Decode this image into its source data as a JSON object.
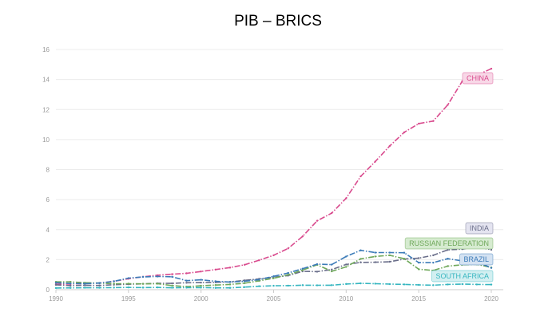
{
  "chart_data": {
    "type": "line",
    "title": "PIB – BRICS",
    "xlabel": "",
    "ylabel": "",
    "xlim": [
      1990,
      2020
    ],
    "ylim": [
      0,
      16
    ],
    "x_ticks": [
      "1990",
      "1995",
      "2000",
      "2005",
      "2010",
      "2015",
      "2020"
    ],
    "y_ticks": [
      "0",
      "2",
      "4",
      "6",
      "8",
      "10",
      "12",
      "14",
      "16"
    ],
    "grid": "horizontal",
    "legend": "end-of-line labels",
    "x": [
      1990,
      1991,
      1992,
      1993,
      1994,
      1995,
      1996,
      1997,
      1998,
      1999,
      2000,
      2001,
      2002,
      2003,
      2004,
      2005,
      2006,
      2007,
      2008,
      2009,
      2010,
      2011,
      2012,
      2013,
      2014,
      2015,
      2016,
      2017,
      2018,
      2019,
      2020
    ],
    "series": [
      {
        "name": "CHINA",
        "color": "#d94b8e",
        "tag_fill": "#f8d8e7",
        "values": [
          0.36,
          0.38,
          0.42,
          0.44,
          0.56,
          0.73,
          0.86,
          0.96,
          1.03,
          1.09,
          1.21,
          1.34,
          1.47,
          1.66,
          1.96,
          2.29,
          2.75,
          3.55,
          4.59,
          5.1,
          6.09,
          7.55,
          8.53,
          9.57,
          10.48,
          11.06,
          11.23,
          12.31,
          13.89,
          14.28,
          14.72
        ]
      },
      {
        "name": "INDIA",
        "color": "#6a6e8a",
        "tag_fill": "#e4e4f0",
        "values": [
          0.32,
          0.27,
          0.29,
          0.28,
          0.33,
          0.36,
          0.39,
          0.42,
          0.42,
          0.46,
          0.47,
          0.49,
          0.52,
          0.62,
          0.72,
          0.83,
          0.94,
          1.22,
          1.2,
          1.34,
          1.68,
          1.82,
          1.83,
          1.86,
          2.04,
          2.1,
          2.29,
          2.65,
          2.7,
          2.87,
          2.66
        ]
      },
      {
        "name": "RUSSIAN FEDERATION",
        "color": "#6fa85a",
        "tag_fill": "#d6ebd0",
        "values": [
          0.52,
          0.52,
          0.46,
          0.44,
          0.4,
          0.4,
          0.39,
          0.4,
          0.27,
          0.2,
          0.26,
          0.31,
          0.35,
          0.43,
          0.59,
          0.76,
          0.99,
          1.3,
          1.66,
          1.22,
          1.52,
          2.05,
          2.21,
          2.29,
          2.06,
          1.36,
          1.28,
          1.57,
          1.66,
          1.69,
          1.48
        ]
      },
      {
        "name": "BRAZIL",
        "color": "#3b7bb8",
        "tag_fill": "#d4e2f2",
        "values": [
          0.46,
          0.41,
          0.4,
          0.44,
          0.56,
          0.77,
          0.85,
          0.88,
          0.86,
          0.6,
          0.66,
          0.56,
          0.51,
          0.56,
          0.67,
          0.89,
          1.11,
          1.4,
          1.7,
          1.67,
          2.21,
          2.62,
          2.47,
          2.47,
          2.46,
          1.8,
          1.8,
          2.06,
          1.92,
          1.87,
          1.45
        ]
      },
      {
        "name": "SOUTH AFRICA",
        "color": "#36b6c0",
        "tag_fill": "#d3eff1",
        "values": [
          0.11,
          0.12,
          0.13,
          0.13,
          0.14,
          0.15,
          0.14,
          0.15,
          0.13,
          0.14,
          0.14,
          0.12,
          0.12,
          0.17,
          0.23,
          0.26,
          0.27,
          0.3,
          0.29,
          0.3,
          0.38,
          0.42,
          0.4,
          0.37,
          0.35,
          0.32,
          0.3,
          0.35,
          0.37,
          0.35,
          0.34
        ]
      }
    ]
  }
}
